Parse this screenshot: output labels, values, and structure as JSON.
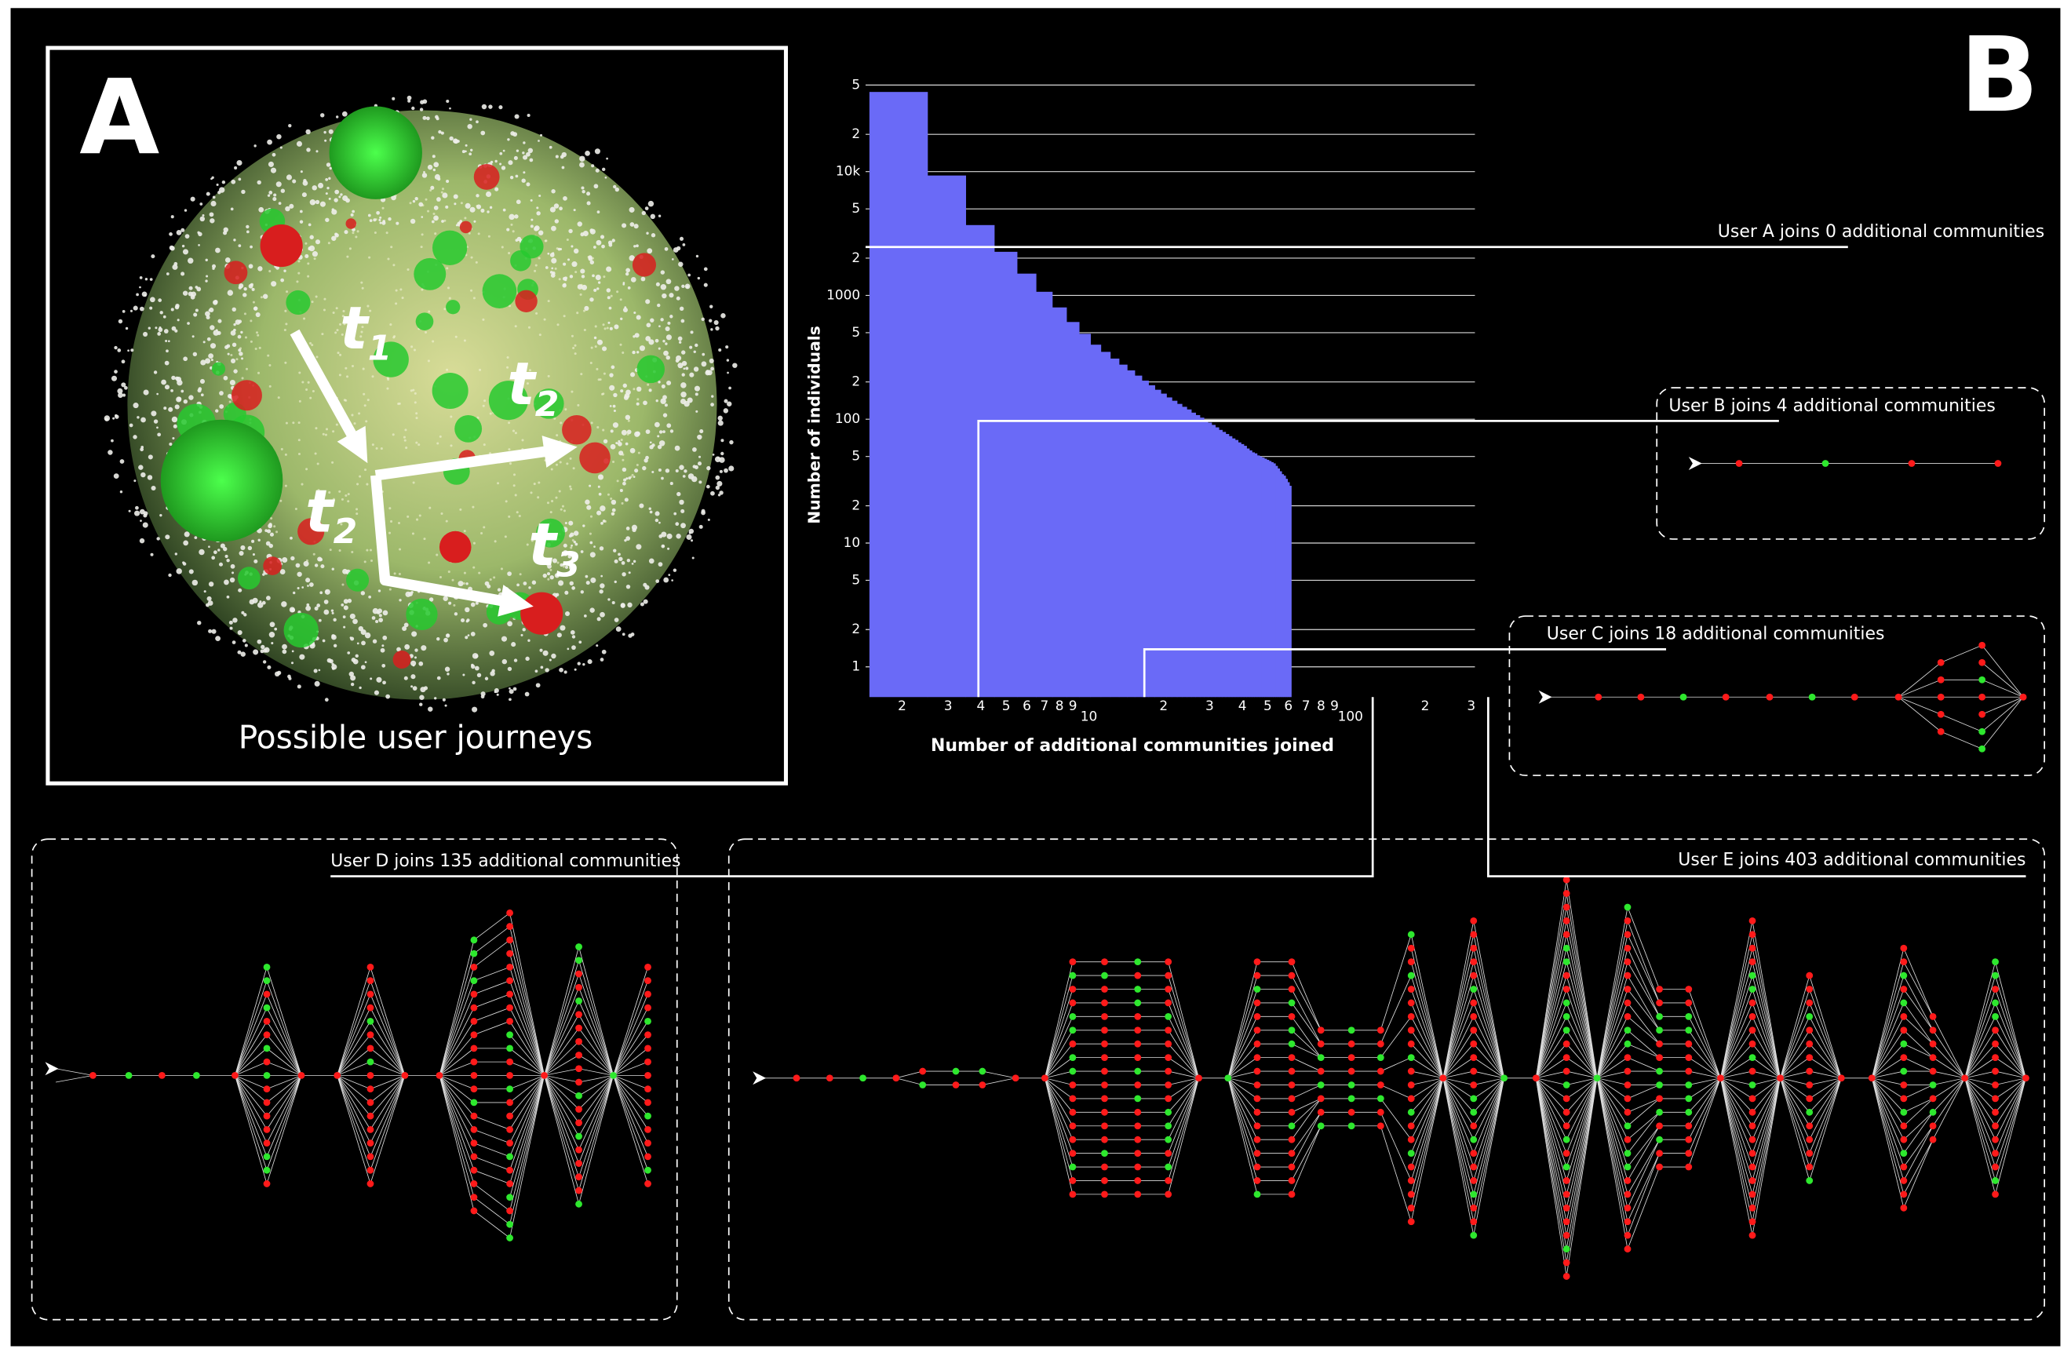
{
  "panels": {
    "a": {
      "label": "A",
      "caption": "Possible user journeys",
      "steps": [
        {
          "letter": "t",
          "index": "1"
        },
        {
          "letter": "t",
          "index": "2"
        },
        {
          "letter": "t",
          "index": "2"
        },
        {
          "letter": "t",
          "index": "3"
        }
      ]
    },
    "b": {
      "label": "B"
    }
  },
  "chart_data": {
    "type": "histogram",
    "x_label": "Number of additional communities joined",
    "y_label": "Number of individuals",
    "xscale": "log",
    "yscale": "log",
    "color": "#6a6af7",
    "bins": [
      1.5,
      2.5,
      3.5,
      4.5,
      5.5,
      6.5,
      7.5,
      8.5,
      9.5,
      10.5,
      11.5,
      12.5,
      13.5,
      14.5,
      15.5,
      16.5,
      17.5,
      18.5,
      19.5,
      20.5,
      21.5,
      22.5,
      23.5,
      24.5,
      25.5,
      26.5,
      27.5,
      28.5,
      29.5,
      30.5,
      31.5,
      32.5,
      33.5,
      34.5,
      35.5,
      36.5,
      37.5,
      38.5,
      39.5,
      40.5,
      41.5,
      42.5,
      43.5,
      44.5,
      45.5,
      46.5,
      47.5,
      48.5,
      49.5,
      50.5,
      51.5,
      52.5,
      53.5,
      54.5,
      55.5,
      56.5,
      57.5,
      58.5,
      59.5,
      60.5,
      61.5
    ],
    "counts": [
      44000,
      9300,
      3700,
      2250,
      1500,
      1070,
      800,
      610,
      490,
      400,
      350,
      309,
      276,
      248,
      225,
      205,
      188,
      173,
      161,
      150,
      141,
      133,
      126,
      120,
      113,
      108,
      103,
      98,
      94,
      90,
      86,
      82,
      79,
      76,
      73,
      70,
      68,
      65,
      63,
      61,
      58,
      56,
      54,
      53,
      51,
      50,
      49,
      48,
      47,
      46,
      45,
      44,
      42,
      40,
      38,
      36,
      35,
      33,
      31,
      29
    ],
    "xlim": [
      1.45,
      310
    ],
    "ylim": [
      0.57,
      50000
    ],
    "xticks": [
      2,
      3,
      4,
      5,
      6,
      7,
      8,
      9,
      10,
      {
        "value": 20,
        "label": "2"
      },
      {
        "value": 30,
        "label": "3"
      },
      {
        "value": 40,
        "label": "4"
      },
      {
        "value": 50,
        "label": "5"
      },
      {
        "value": 60,
        "label": "6"
      },
      {
        "value": 70,
        "label": "7"
      },
      {
        "value": 80,
        "label": "8"
      },
      {
        "value": 90,
        "label": "9"
      },
      100,
      {
        "value": 200,
        "label": "2"
      },
      {
        "value": 300,
        "label": "3"
      }
    ],
    "yticks": [
      1,
      2,
      5,
      10,
      {
        "value": 20,
        "label": "2"
      },
      {
        "value": 50,
        "label": "5"
      },
      100,
      {
        "value": 200,
        "label": "2"
      },
      {
        "value": 500,
        "label": "5"
      },
      1000,
      {
        "value": 2000,
        "label": "2"
      },
      {
        "value": 5000,
        "label": "5"
      },
      {
        "value": 10000,
        "label": "10k"
      },
      {
        "value": 20000,
        "label": "2"
      },
      {
        "value": 50000,
        "label": "5"
      }
    ],
    "grid": true,
    "annotations": [
      "User A joins 0 additional communities",
      "User B joins 4 additional communities",
      "User C joins 18 additional communities",
      "User D joins 135 additional communities",
      "User E joins 403 additional communities"
    ]
  }
}
